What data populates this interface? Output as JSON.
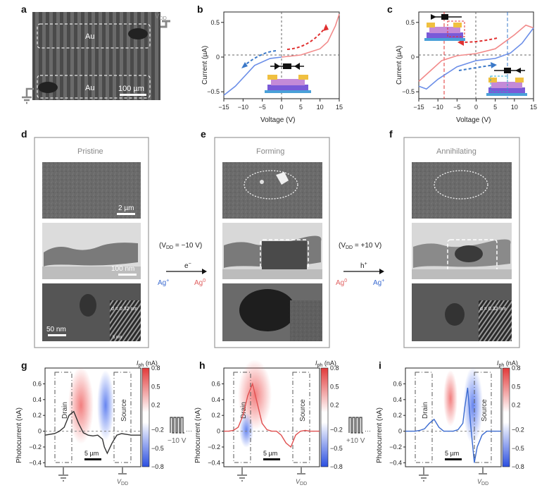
{
  "panel_letters": [
    "a",
    "b",
    "c",
    "d",
    "e",
    "f",
    "g",
    "h",
    "i"
  ],
  "panel_a": {
    "vdd": "V",
    "vdd_sub": "DD",
    "electrode_top": "Au",
    "electrode_bottom": "Au",
    "scale_bar": "100 µm"
  },
  "panel_b": {
    "ylabel": "Current (µA)",
    "xlabel": "Voltage (V)",
    "xticks": [
      "−15",
      "−10",
      "−5",
      "0",
      "5",
      "10",
      "15"
    ],
    "yticks": [
      "0.5",
      "0",
      "−0.5"
    ]
  },
  "panel_c": {
    "ylabel": "Current (µA)",
    "xlabel": "Voltage (V)",
    "xticks": [
      "−15",
      "−10",
      "−5",
      "0",
      "5",
      "10",
      "15"
    ],
    "yticks": [
      "0.5",
      "0",
      "−0.5"
    ]
  },
  "panel_d": {
    "title": "Pristine",
    "scale_top": "2 µm",
    "scale_mid": "100 nm",
    "scale_bot": "50 nm",
    "lattice": "d = 0.32 nm",
    "lattice_sub": "5 nm"
  },
  "panel_e": {
    "title": "Forming"
  },
  "panel_f": {
    "title": "Annihilating",
    "lattice": "d = 0.32 nm"
  },
  "transition_1": {
    "condition": "(V",
    "condition_sub": "DD",
    "condition_val": " = −10 V)",
    "carrier": "e",
    "carrier_sup": "−",
    "from": "Ag",
    "from_sup": "+",
    "to": "Ag",
    "to_sup": "0"
  },
  "transition_2": {
    "condition": "(V",
    "condition_sub": "DD",
    "condition_val": " = +10 V)",
    "carrier": "h",
    "carrier_sup": "+",
    "from": "Ag",
    "from_sup": "0",
    "to": "Ag",
    "to_sup": "+"
  },
  "photocurrent": {
    "ylabel": "Photocurrent (nA)",
    "yticks": [
      "0.6",
      "0.4",
      "0.2",
      "0",
      "−0.2",
      "−0.4"
    ],
    "colorbar_label": "I",
    "colorbar_sub": "ph",
    "colorbar_unit": " (nA)",
    "colorbar_ticks": [
      "0.8",
      "0.5",
      "0.2",
      "−0.2",
      "−0.5",
      "−0.8"
    ],
    "drain": "Drain",
    "source": "Source",
    "scale_bar": "5 µm",
    "vdd": "V",
    "vdd_sub": "DD",
    "pulse_g": "−10 V",
    "pulse_h": "+10 V"
  },
  "colors": {
    "red": "#f28a8a",
    "blue": "#6b8ee8",
    "dashed_red": "#e03030",
    "dashed_blue": "#3a78c8",
    "sem_dark": "#3a3a3a"
  },
  "chart_data": [
    {
      "type": "line",
      "panel": "b",
      "xlabel": "Voltage (V)",
      "ylabel": "Current (µA)",
      "xlim": [
        -15,
        15
      ],
      "ylim": [
        -0.6,
        0.65
      ],
      "series": [
        {
          "x": [
            0,
            5,
            10,
            12,
            14,
            15
          ],
          "y": [
            0,
            0.03,
            0.12,
            0.22,
            0.45,
            0.62
          ]
        },
        {
          "x": [
            -15,
            -12,
            -10,
            -7,
            -3,
            0
          ],
          "y": [
            -0.55,
            -0.42,
            -0.3,
            -0.12,
            -0.02,
            0
          ]
        }
      ]
    },
    {
      "type": "line",
      "panel": "c",
      "xlabel": "Voltage (V)",
      "ylabel": "Current (µA)",
      "xlim": [
        -15,
        15
      ],
      "ylim": [
        -0.6,
        0.65
      ],
      "series": [
        {
          "x": [
            -15,
            -12,
            -9,
            -5,
            0,
            5,
            10,
            13,
            15
          ],
          "y": [
            -0.35,
            -0.2,
            -0.05,
            0.02,
            0.05,
            0.12,
            0.32,
            0.46,
            0.42
          ]
        },
        {
          "x": [
            15,
            12,
            9,
            5,
            0,
            -5,
            -10,
            -13,
            -15
          ],
          "y": [
            0.42,
            0.2,
            0.06,
            -0.02,
            -0.05,
            -0.14,
            -0.32,
            -0.46,
            -0.42
          ]
        }
      ]
    },
    {
      "type": "line",
      "panel": "g",
      "ylabel": "Photocurrent (nA)",
      "ylim": [
        -0.45,
        0.8
      ],
      "series": [
        {
          "x": [
            0,
            0.05,
            0.1,
            0.15,
            0.2,
            0.25,
            0.3,
            0.35,
            0.4,
            0.45,
            0.5,
            0.55,
            0.6,
            0.62,
            0.65,
            0.7,
            0.75,
            0.8,
            0.85,
            0.9,
            0.95,
            1.0
          ],
          "y": [
            -0.05,
            -0.04,
            -0.03,
            0.0,
            0.05,
            0.2,
            0.25,
            0.1,
            -0.02,
            -0.05,
            -0.06,
            -0.05,
            -0.1,
            -0.2,
            -0.28,
            -0.15,
            -0.05,
            -0.03,
            -0.04,
            -0.05,
            -0.05,
            -0.05
          ]
        }
      ]
    },
    {
      "type": "line",
      "panel": "h",
      "ylabel": "Photocurrent (nA)",
      "ylim": [
        -0.45,
        0.8
      ],
      "series": [
        {
          "x": [
            0,
            0.05,
            0.1,
            0.15,
            0.2,
            0.25,
            0.3,
            0.35,
            0.4,
            0.45,
            0.5,
            0.55,
            0.6,
            0.65,
            0.7,
            0.75,
            0.8,
            0.85,
            0.9,
            0.95,
            1.0
          ],
          "y": [
            0.0,
            0.0,
            0.01,
            0.05,
            0.2,
            0.45,
            0.6,
            0.35,
            0.1,
            0.02,
            0.0,
            0.0,
            -0.05,
            -0.15,
            -0.2,
            -0.05,
            0.0,
            0.01,
            0.0,
            0.0,
            0.0
          ]
        }
      ]
    },
    {
      "type": "line",
      "panel": "i",
      "ylabel": "Photocurrent (nA)",
      "ylim": [
        -0.45,
        0.8
      ],
      "series": [
        {
          "x": [
            0,
            0.05,
            0.1,
            0.15,
            0.2,
            0.25,
            0.3,
            0.35,
            0.4,
            0.45,
            0.5,
            0.55,
            0.6,
            0.62,
            0.65,
            0.68,
            0.72,
            0.75,
            0.8,
            0.85,
            0.9,
            0.95,
            1.0
          ],
          "y": [
            0.0,
            0.0,
            0.0,
            0.01,
            0.03,
            0.1,
            0.15,
            0.05,
            0.0,
            0.0,
            0.0,
            0.02,
            0.1,
            0.3,
            0.55,
            0.1,
            -0.4,
            -0.2,
            -0.05,
            0.0,
            0.0,
            0.0,
            0.0
          ]
        }
      ]
    }
  ]
}
